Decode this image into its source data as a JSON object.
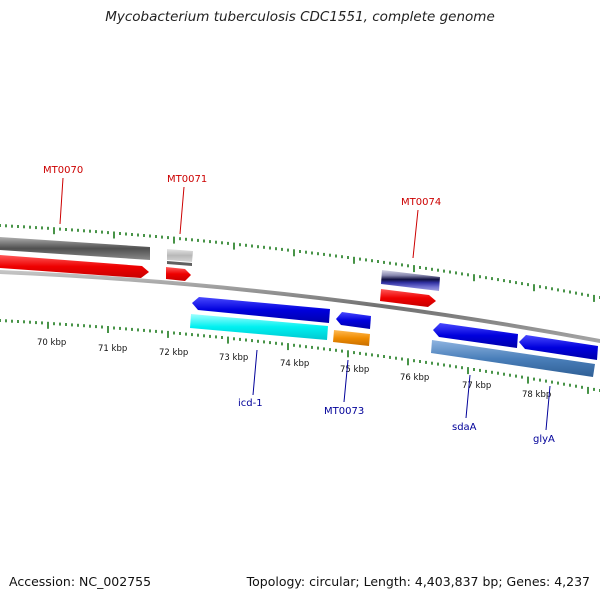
{
  "title": "Mycobacterium tuberculosis CDC1551, complete genome",
  "footer": {
    "accession": "Accession: NC_002755",
    "summary": "Topology: circular; Length: 4,403,837 bp; Genes: 4,237"
  },
  "colors": {
    "forward_label": "#cc0000",
    "reverse_label": "#000099",
    "tick": "#1a7a1a",
    "backbone": "#888888"
  },
  "axis": {
    "unit": "kbp",
    "tick_labels": [
      "70 kbp",
      "71 kbp",
      "72 kbp",
      "73 kbp",
      "74 kbp",
      "75 kbp",
      "76 kbp",
      "77 kbp",
      "78 kbp"
    ]
  },
  "genes": [
    {
      "label": "MT0070",
      "strand": "forward"
    },
    {
      "label": "MT0071",
      "strand": "forward"
    },
    {
      "label": "MT0074",
      "strand": "forward"
    },
    {
      "label": "icd-1",
      "strand": "reverse"
    },
    {
      "label": "MT0073",
      "strand": "reverse"
    },
    {
      "label": "sdaA",
      "strand": "reverse"
    },
    {
      "label": "glyA",
      "strand": "reverse"
    }
  ]
}
